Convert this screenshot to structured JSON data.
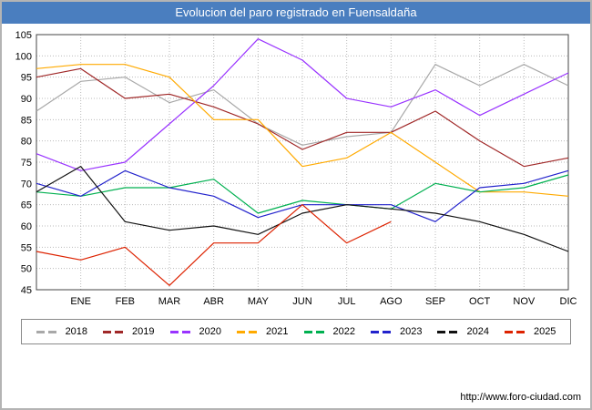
{
  "title_bar": {
    "title": "Evolucion del paro registrado en Fuensaldaña",
    "bg_color": "#4a7ebf",
    "text_color": "#ffffff"
  },
  "footer": {
    "url": "http://www.foro-ciudad.com"
  },
  "chart_data": {
    "type": "line",
    "title": "Evolucion del paro registrado en Fuensaldaña",
    "x_labels": [
      "ENE",
      "FEB",
      "MAR",
      "ABR",
      "MAY",
      "JUN",
      "JUL",
      "AGO",
      "SEP",
      "OCT",
      "NOV",
      "DIC"
    ],
    "x_note": "Each series has up to 13 points: the first sits on the left axis (unlabeled start), the remaining 12 fall on the ENE-DIC gridlines. 2025 is a partial year ending at AGO.",
    "ylim": [
      45,
      105
    ],
    "ytick_step": 5,
    "grid": true,
    "legend_position": "bottom",
    "axis_color": "#444444",
    "grid_color": "#bbbbbb",
    "series": [
      {
        "name": "2018",
        "color": "#a8a8a8",
        "values": [
          87,
          94,
          95,
          89,
          92,
          84,
          79,
          81,
          82,
          98,
          93,
          98,
          93
        ]
      },
      {
        "name": "2019",
        "color": "#a02828",
        "values": [
          95,
          97,
          90,
          91,
          88,
          84,
          78,
          82,
          82,
          87,
          80,
          74,
          76
        ]
      },
      {
        "name": "2020",
        "color": "#9933ff",
        "values": [
          77,
          73,
          75,
          84,
          93,
          104,
          99,
          90,
          88,
          92,
          86,
          91,
          96
        ]
      },
      {
        "name": "2021",
        "color": "#ffaa00",
        "values": [
          97,
          98,
          98,
          95,
          85,
          85,
          74,
          76,
          82,
          75,
          68,
          68,
          67
        ]
      },
      {
        "name": "2022",
        "color": "#00b050",
        "values": [
          68,
          67,
          69,
          69,
          71,
          63,
          66,
          65,
          64,
          70,
          68,
          69,
          72
        ]
      },
      {
        "name": "2023",
        "color": "#2222cc",
        "values": [
          70,
          67,
          73,
          69,
          67,
          62,
          65,
          65,
          65,
          61,
          69,
          70,
          73
        ]
      },
      {
        "name": "2024",
        "color": "#111111",
        "values": [
          68,
          74,
          61,
          59,
          60,
          58,
          63,
          65,
          64,
          63,
          61,
          58,
          54
        ]
      },
      {
        "name": "2025",
        "color": "#dd2200",
        "values": [
          54,
          52,
          55,
          46,
          56,
          56,
          65,
          56,
          61
        ]
      }
    ]
  }
}
